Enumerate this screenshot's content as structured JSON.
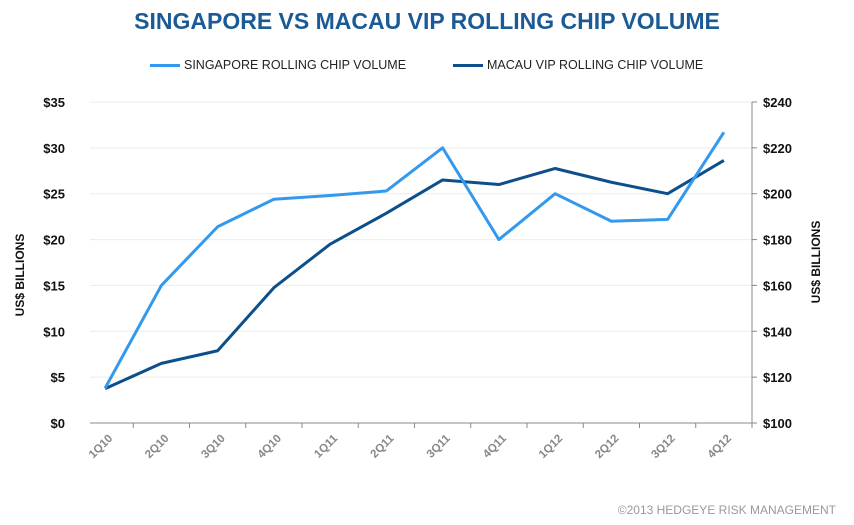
{
  "chart_data": {
    "type": "line",
    "title": "SINGAPORE VS MACAU VIP ROLLING CHIP VOLUME",
    "categories": [
      "1Q10",
      "2Q10",
      "3Q10",
      "4Q10",
      "1Q11",
      "2Q11",
      "3Q11",
      "4Q11",
      "1Q12",
      "2Q12",
      "3Q12",
      "4Q12"
    ],
    "series": [
      {
        "name": "SINGAPORE ROLLING CHIP VOLUME",
        "axis": "left",
        "color": "#3399ee",
        "values": [
          3.8,
          15.0,
          21.4,
          24.4,
          24.8,
          25.3,
          30.0,
          20.0,
          25.0,
          22.0,
          22.2,
          31.7
        ]
      },
      {
        "name": "MACAU VIP ROLLING CHIP VOLUME",
        "axis": "right",
        "color": "#0d4f8b",
        "values": [
          115,
          126,
          131.5,
          159,
          178,
          191.5,
          206,
          204,
          211,
          205,
          200,
          214.5
        ]
      }
    ],
    "ylabel": "US$ BILLIONS",
    "y2label": "US$ BILLIONS",
    "ylim": [
      0,
      35
    ],
    "y2lim": [
      100,
      240
    ],
    "yticks": [
      "$0",
      "$5",
      "$10",
      "$15",
      "$20",
      "$25",
      "$30",
      "$35"
    ],
    "y2ticks": [
      "$100",
      "$120",
      "$140",
      "$160",
      "$180",
      "$200",
      "$220",
      "$240"
    ],
    "grid": true,
    "legend": "top"
  },
  "footer": "©2013 HEDGEYE  RISK MANAGEMENT"
}
